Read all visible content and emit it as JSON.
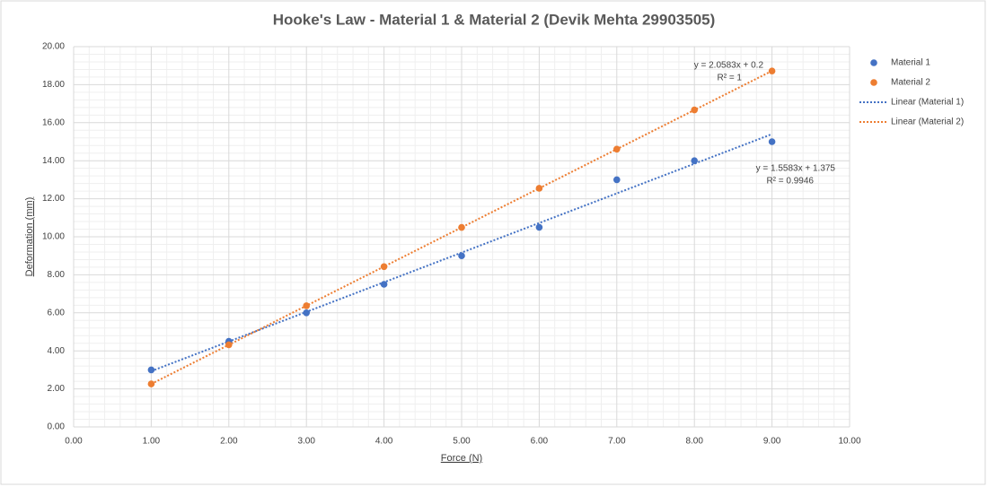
{
  "chart_data": {
    "type": "scatter",
    "title": "Hooke's Law - Material 1 & Material 2 (Devik Mehta 29903505)",
    "x_label": "Force (N)",
    "y_label": "Deformation (mm)",
    "x": [
      1,
      2,
      3,
      4,
      5,
      6,
      7,
      8,
      9
    ],
    "series": [
      {
        "name": "Material 1",
        "color": "#4472c4",
        "values": [
          3.0,
          4.5,
          6.0,
          7.5,
          9.0,
          10.5,
          13.0,
          14.0,
          15.0
        ]
      },
      {
        "name": "Material 2",
        "color": "#ed7d31",
        "values": [
          2.26,
          4.32,
          6.37,
          8.43,
          10.49,
          12.55,
          14.61,
          16.67,
          18.72
        ]
      }
    ],
    "trendlines": [
      {
        "name": "Linear (Material 1)",
        "color": "#4472c4",
        "slope": 1.5583,
        "intercept": 1.375,
        "equation": "y = 1.5583x + 1.375",
        "r2": "R² = 0.9946"
      },
      {
        "name": "Linear (Material 2)",
        "color": "#ed7d31",
        "slope": 2.0583,
        "intercept": 0.2,
        "equation": "y = 2.0583x + 0.2",
        "r2": "R² = 1"
      }
    ],
    "xlim": [
      0,
      10
    ],
    "xticks": [
      {
        "value": 0,
        "label": "0.00"
      },
      {
        "value": 1,
        "label": "1.00"
      },
      {
        "value": 2,
        "label": "2.00"
      },
      {
        "value": 3,
        "label": "3.00"
      },
      {
        "value": 4,
        "label": "4.00"
      },
      {
        "value": 5,
        "label": "5.00"
      },
      {
        "value": 6,
        "label": "6.00"
      },
      {
        "value": 7,
        "label": "7.00"
      },
      {
        "value": 8,
        "label": "8.00"
      },
      {
        "value": 9,
        "label": "9.00"
      },
      {
        "value": 10,
        "label": "10.00"
      }
    ],
    "ylim": [
      0,
      20
    ],
    "yticks": [
      {
        "value": 0,
        "label": "0.00"
      },
      {
        "value": 2,
        "label": "2.00"
      },
      {
        "value": 4,
        "label": "4.00"
      },
      {
        "value": 6,
        "label": "6.00"
      },
      {
        "value": 8,
        "label": "8.00"
      },
      {
        "value": 10,
        "label": "10.00"
      },
      {
        "value": 12,
        "label": "12.00"
      },
      {
        "value": 14,
        "label": "14.00"
      },
      {
        "value": 16,
        "label": "16.00"
      },
      {
        "value": 18,
        "label": "18.00"
      },
      {
        "value": 20,
        "label": "20.00"
      }
    ],
    "grid": true,
    "minor_grid": true,
    "legend": "right"
  }
}
